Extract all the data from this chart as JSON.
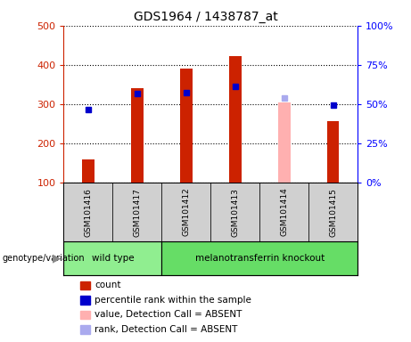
{
  "title": "GDS1964 / 1438787_at",
  "samples": [
    "GSM101416",
    "GSM101417",
    "GSM101412",
    "GSM101413",
    "GSM101414",
    "GSM101415"
  ],
  "count_values": [
    160,
    340,
    390,
    422,
    null,
    257
  ],
  "count_absent": [
    null,
    null,
    null,
    null,
    305,
    null
  ],
  "percentile_values": [
    287,
    327,
    330,
    346,
    null,
    297
  ],
  "percentile_absent": [
    null,
    null,
    null,
    null,
    315,
    null
  ],
  "ylim_left": [
    100,
    500
  ],
  "ylim_right": [
    0,
    100
  ],
  "yticks_left": [
    100,
    200,
    300,
    400,
    500
  ],
  "yticks_right": [
    0,
    25,
    50,
    75,
    100
  ],
  "count_color": "#cc2200",
  "count_absent_color": "#ffb0b0",
  "percentile_color": "#0000cc",
  "percentile_absent_color": "#aaaaee",
  "bar_width": 0.25,
  "background_color": "#d0d0d0",
  "plot_bg": "#ffffff",
  "legend_items": [
    {
      "label": "count",
      "color": "#cc2200"
    },
    {
      "label": "percentile rank within the sample",
      "color": "#0000cc"
    },
    {
      "label": "value, Detection Call = ABSENT",
      "color": "#ffb0b0"
    },
    {
      "label": "rank, Detection Call = ABSENT",
      "color": "#aaaaee"
    }
  ],
  "wt_color": "#90EE90",
  "ko_color": "#66dd66"
}
